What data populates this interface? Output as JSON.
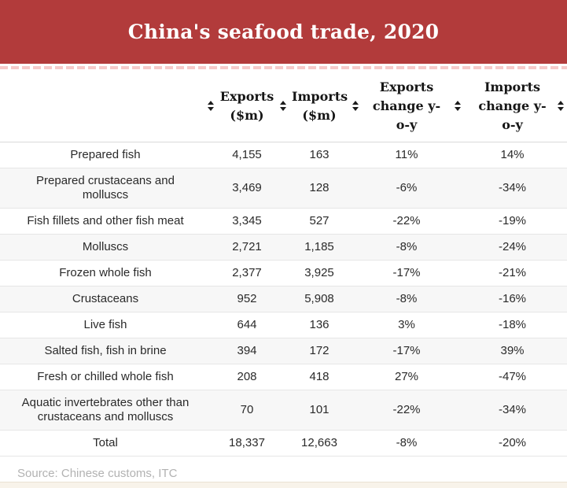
{
  "banner": {
    "title": "China's seafood trade, 2020",
    "bg_color": "#b23b3b",
    "text_color": "#ffffff"
  },
  "chart_data": {
    "type": "table",
    "title": "China's seafood trade, 2020",
    "columns": [
      "",
      "Exports ($m)",
      "Imports ($m)",
      "Exports change y-o-y",
      "Imports change y-o-y"
    ],
    "rows": [
      [
        "Prepared fish",
        "4,155",
        "163",
        "11%",
        "14%"
      ],
      [
        "Prepared crustaceans and molluscs",
        "3,469",
        "128",
        "-6%",
        "-34%"
      ],
      [
        "Fish fillets and other fish meat",
        "3,345",
        "527",
        "-22%",
        "-19%"
      ],
      [
        "Molluscs",
        "2,721",
        "1,185",
        "-8%",
        "-24%"
      ],
      [
        "Frozen whole fish",
        "2,377",
        "3,925",
        "-17%",
        "-21%"
      ],
      [
        "Crustaceans",
        "952",
        "5,908",
        "-8%",
        "-16%"
      ],
      [
        "Live fish",
        "644",
        "136",
        "3%",
        "-18%"
      ],
      [
        "Salted fish, fish in brine",
        "394",
        "172",
        "-17%",
        "39%"
      ],
      [
        "Fresh or chilled whole fish",
        "208",
        "418",
        "27%",
        "-47%"
      ],
      [
        "Aquatic invertebrates other than crustaceans and molluscs",
        "70",
        "101",
        "-22%",
        "-34%"
      ],
      [
        "Total",
        "18,337",
        "12,663",
        "-8%",
        "-20%"
      ]
    ],
    "categories": [
      "Prepared fish",
      "Prepared crustaceans and molluscs",
      "Fish fillets and other fish meat",
      "Molluscs",
      "Frozen whole fish",
      "Crustaceans",
      "Live fish",
      "Salted fish, fish in brine",
      "Fresh or chilled whole fish",
      "Aquatic invertebrates other than crustaceans and molluscs",
      "Total"
    ],
    "series": [
      {
        "name": "Exports ($m)",
        "values": [
          4155,
          3469,
          3345,
          2721,
          2377,
          952,
          644,
          394,
          208,
          70,
          18337
        ]
      },
      {
        "name": "Imports ($m)",
        "values": [
          163,
          128,
          527,
          1185,
          3925,
          5908,
          136,
          172,
          418,
          101,
          12663
        ]
      },
      {
        "name": "Exports change y-o-y (%)",
        "values": [
          11,
          -6,
          -22,
          -8,
          -17,
          -8,
          3,
          -17,
          27,
          -22,
          -8
        ]
      },
      {
        "name": "Imports change y-o-y (%)",
        "values": [
          14,
          -34,
          -19,
          -24,
          -21,
          -16,
          -18,
          39,
          -47,
          -34,
          -20
        ]
      }
    ],
    "sortable_columns": true,
    "zebra_stripe_color": "#f7f7f7"
  },
  "footer": {
    "source_label": "Source: Chinese customs, ITC"
  }
}
